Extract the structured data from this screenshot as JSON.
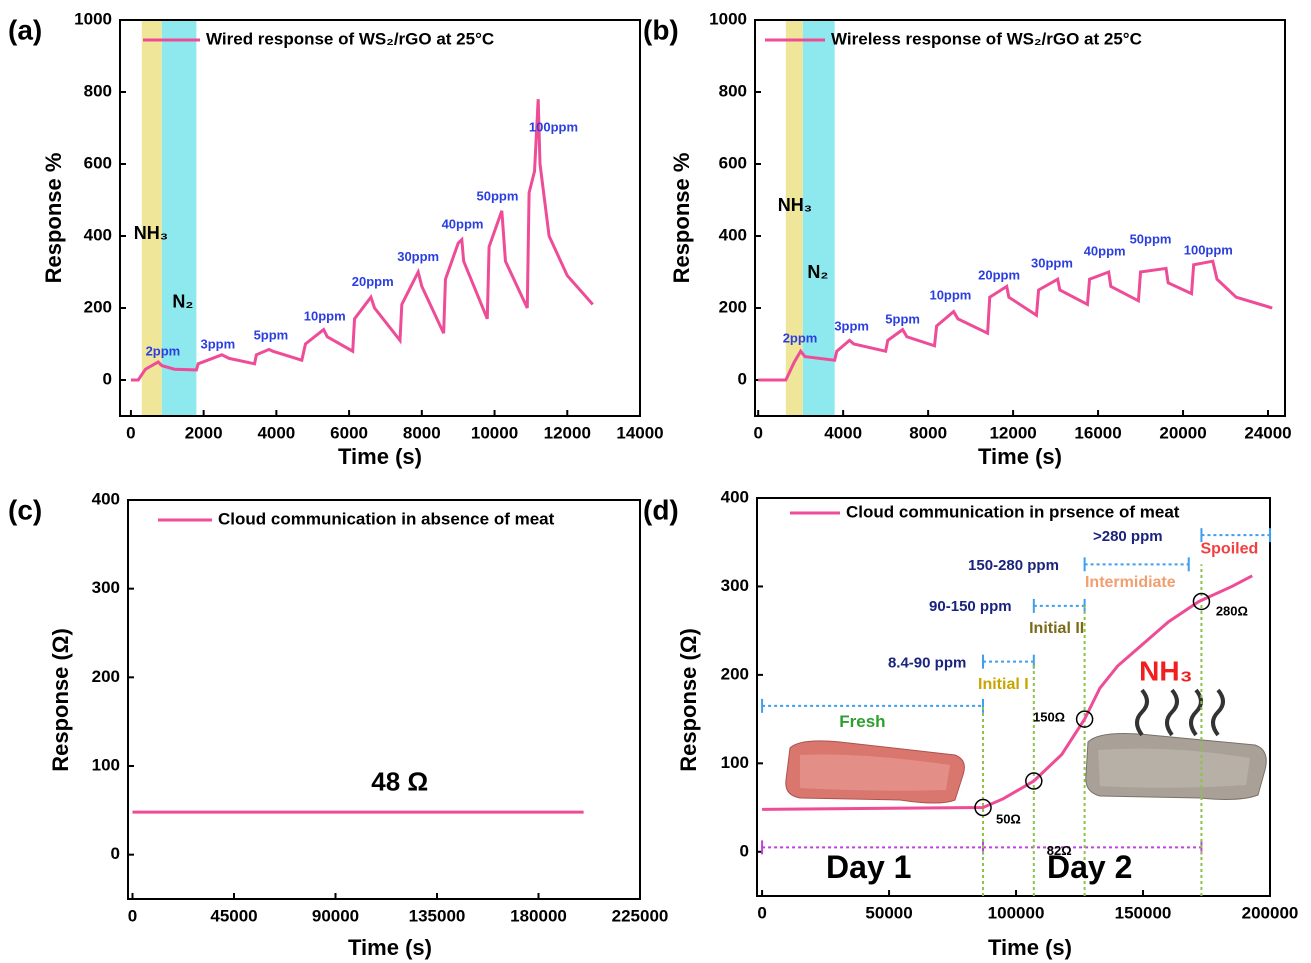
{
  "chart_data": [
    {
      "type": "line",
      "panel": "(a)",
      "xlabel": "Time (s)",
      "ylabel": "Response %",
      "xlim": [
        -300,
        14000
      ],
      "xticks": [
        0,
        2000,
        4000,
        6000,
        8000,
        10000,
        12000,
        14000
      ],
      "ylim": [
        -100,
        1000
      ],
      "yticks": [
        0,
        200,
        400,
        600,
        800,
        1000
      ],
      "x": [
        0,
        200,
        400,
        750,
        850,
        1200,
        1800,
        1850,
        2500,
        2700,
        3400,
        3450,
        3800,
        3900,
        4700,
        4800,
        5300,
        5400,
        6100,
        6150,
        6600,
        6700,
        7400,
        7450,
        7900,
        8000,
        8600,
        8650,
        9000,
        9100,
        9150,
        9800,
        9850,
        10200,
        10300,
        10900,
        10950,
        11100,
        11200,
        11250,
        11500,
        12000,
        12700
      ],
      "series": [
        {
          "name": "Wired response of WS₂/rGO at 25°C",
          "color": "#ee4c97",
          "values": [
            0,
            0,
            30,
            50,
            40,
            30,
            28,
            45,
            70,
            60,
            45,
            70,
            85,
            80,
            55,
            100,
            140,
            120,
            80,
            170,
            230,
            200,
            110,
            210,
            300,
            260,
            130,
            280,
            380,
            390,
            330,
            170,
            370,
            470,
            330,
            200,
            520,
            580,
            780,
            600,
            400,
            290,
            210
          ]
        }
      ],
      "annotations": [
        "NH₃",
        "N₂",
        "2ppm",
        "3ppm",
        "5ppm",
        "10ppm",
        "20ppm",
        "30ppm",
        "40ppm",
        "50ppm",
        "100ppm"
      ]
    },
    {
      "type": "line",
      "panel": "(b)",
      "xlabel": "Time (s)",
      "ylabel": "Response %",
      "xlim": [
        -150,
        24800
      ],
      "xticks": [
        0,
        4000,
        8000,
        12000,
        16000,
        20000,
        24000
      ],
      "ylim": [
        -100,
        1000
      ],
      "yticks": [
        0,
        200,
        400,
        600,
        800,
        1000
      ],
      "x": [
        0,
        1300,
        1700,
        2000,
        2200,
        3600,
        3700,
        4300,
        4500,
        6000,
        6100,
        6800,
        7000,
        8300,
        8400,
        9200,
        9400,
        10800,
        10900,
        11700,
        11800,
        13100,
        13200,
        14100,
        14200,
        15500,
        15600,
        16500,
        16600,
        17900,
        18000,
        19200,
        19300,
        20400,
        20500,
        21400,
        21600,
        22500,
        24200
      ],
      "series": [
        {
          "name": "Wireless response of WS₂/rGO at 25°C",
          "color": "#ee4c97",
          "values": [
            0,
            0,
            50,
            80,
            65,
            55,
            80,
            110,
            100,
            80,
            110,
            140,
            120,
            95,
            150,
            190,
            170,
            130,
            230,
            260,
            230,
            180,
            250,
            280,
            250,
            210,
            280,
            300,
            260,
            220,
            300,
            310,
            270,
            240,
            320,
            330,
            280,
            230,
            200
          ]
        }
      ],
      "annotations": [
        "NH₃",
        "N₂",
        "2ppm",
        "3ppm",
        "5ppm",
        "10ppm",
        "20ppm",
        "30ppm",
        "40ppm",
        "50ppm",
        "100ppm"
      ]
    },
    {
      "type": "line",
      "panel": "(c)",
      "xlabel": "Time (s)",
      "ylabel": "Response (Ω)",
      "xlim": [
        -2000,
        225000
      ],
      "xticks": [
        0,
        45000,
        90000,
        135000,
        180000,
        225000
      ],
      "ylim": [
        -50,
        400
      ],
      "yticks": [
        0,
        100,
        200,
        300,
        400
      ],
      "x": [
        0,
        200000
      ],
      "series": [
        {
          "name": "Cloud communication in absence of meat",
          "color": "#ee4c97",
          "values": [
            48,
            48
          ]
        }
      ],
      "annotations": [
        "48 Ω"
      ]
    },
    {
      "type": "line",
      "panel": "(d)",
      "xlabel": "Time (s)",
      "ylabel": "Response (Ω)",
      "xlim": [
        -2000,
        200000
      ],
      "xticks": [
        0,
        50000,
        100000,
        150000,
        200000
      ],
      "ylim": [
        -50,
        400
      ],
      "yticks": [
        0,
        100,
        200,
        300,
        400
      ],
      "x": [
        0,
        87000,
        95000,
        107000,
        118000,
        127000,
        133000,
        140000,
        150000,
        160000,
        172000,
        185000,
        193000
      ],
      "series": [
        {
          "name": "Cloud communication in prsence of meat",
          "color": "#ee4c97",
          "values": [
            48,
            50,
            60,
            80,
            110,
            150,
            185,
            210,
            235,
            260,
            283,
            300,
            312
          ]
        }
      ],
      "annotations": [
        "8.4-90 ppm",
        "Initial I",
        "90-150 ppm",
        "Initial II",
        "150-280 ppm",
        "Intermidiate",
        ">280 ppm",
        "Spoiled",
        "Fresh",
        "50Ω",
        "82Ω",
        "150Ω",
        "280Ω",
        "NH₃",
        "Day 1",
        "Day 2"
      ]
    }
  ]
}
